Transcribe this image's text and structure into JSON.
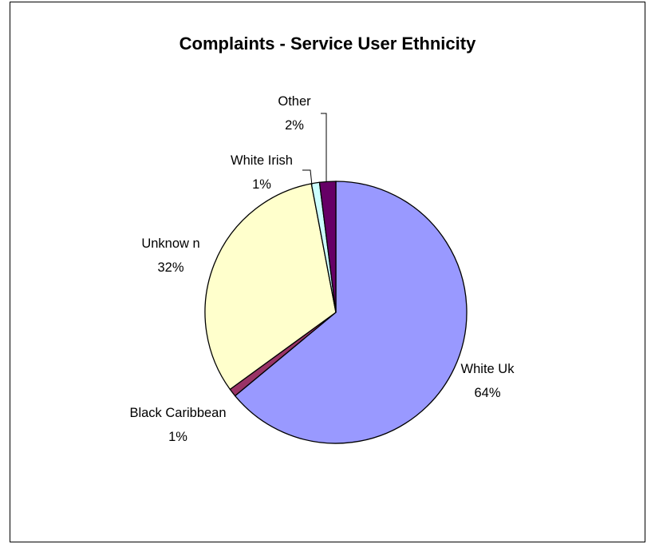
{
  "chart_data": {
    "type": "pie",
    "title": "Complaints - Service User Ethnicity",
    "slices": [
      {
        "name": "White Uk",
        "value": 64,
        "pct_label": "64%",
        "color": "#9999ff"
      },
      {
        "name": "Black Caribbean",
        "value": 1,
        "pct_label": "1%",
        "color": "#993366"
      },
      {
        "name": "Unknow n",
        "value": 32,
        "pct_label": "32%",
        "color": "#ffffcc"
      },
      {
        "name": "White Irish",
        "value": 1,
        "pct_label": "1%",
        "color": "#ccffff"
      },
      {
        "name": "Other",
        "value": 2,
        "pct_label": "2%",
        "color": "#660066"
      }
    ],
    "legend": "none"
  }
}
